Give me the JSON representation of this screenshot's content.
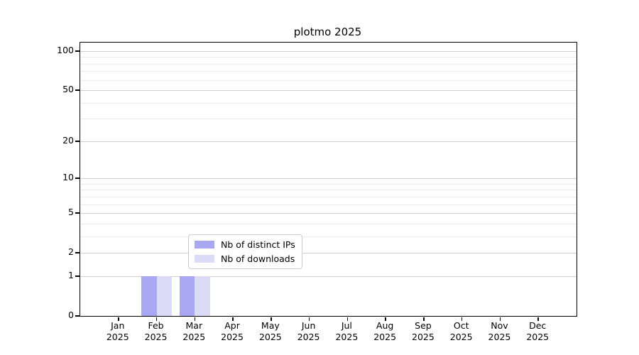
{
  "chart_data": {
    "type": "bar",
    "title": "plotmo 2025",
    "categories": [
      {
        "month": "Jan",
        "year": "2025"
      },
      {
        "month": "Feb",
        "year": "2025"
      },
      {
        "month": "Mar",
        "year": "2025"
      },
      {
        "month": "Apr",
        "year": "2025"
      },
      {
        "month": "May",
        "year": "2025"
      },
      {
        "month": "Jun",
        "year": "2025"
      },
      {
        "month": "Jul",
        "year": "2025"
      },
      {
        "month": "Aug",
        "year": "2025"
      },
      {
        "month": "Sep",
        "year": "2025"
      },
      {
        "month": "Oct",
        "year": "2025"
      },
      {
        "month": "Nov",
        "year": "2025"
      },
      {
        "month": "Dec",
        "year": "2025"
      }
    ],
    "series": [
      {
        "name": "Nb of distinct IPs",
        "color": "#a8a8f2",
        "values": [
          0,
          1,
          1,
          0,
          0,
          0,
          0,
          0,
          0,
          0,
          0,
          0
        ]
      },
      {
        "name": "Nb of downloads",
        "color": "#dcdcf8",
        "values": [
          0,
          1,
          1,
          0,
          0,
          0,
          0,
          0,
          0,
          0,
          0,
          0
        ]
      }
    ],
    "yaxis": {
      "scale": "log1p",
      "major_ticks": [
        0,
        1,
        2,
        5,
        10,
        20,
        50,
        100
      ],
      "minor_ticks": [
        3,
        4,
        6,
        7,
        8,
        9,
        30,
        40,
        60,
        70,
        80,
        90
      ],
      "range": [
        0,
        116
      ]
    },
    "grid": "horizontal",
    "legend_position": "lower-center"
  },
  "colors": {
    "axis": "#000000",
    "major_grid": "#cfcfcf",
    "minor_grid": "#ececec",
    "background": "#ffffff"
  }
}
